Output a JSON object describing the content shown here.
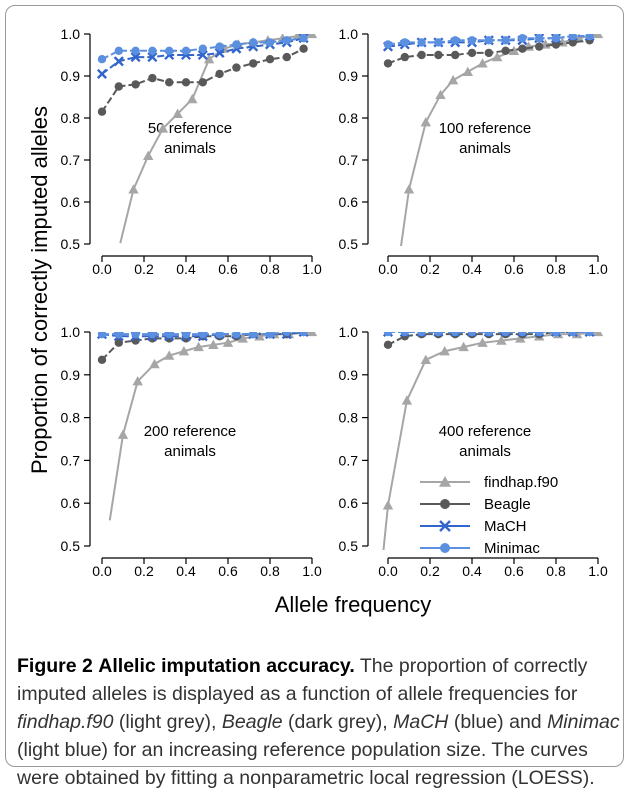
{
  "figure": {
    "label": "Figure 2",
    "title": "Allelic imputation accuracy.",
    "caption": [
      {
        "text": " The proportion of correctly imputed alleles is displayed as a function of allele frequencies for ",
        "italic": false
      },
      {
        "text": "findhap.f90",
        "italic": true
      },
      {
        "text": " (light grey), ",
        "italic": false
      },
      {
        "text": "Beagle",
        "italic": true
      },
      {
        "text": " (dark grey), ",
        "italic": false
      },
      {
        "text": "MaCH",
        "italic": true
      },
      {
        "text": " (blue) and ",
        "italic": false
      },
      {
        "text": "Minimac",
        "italic": true
      },
      {
        "text": " (light blue) for an increasing reference population size. The curves were obtained by fitting a nonparametric local regression (LOESS).",
        "italic": false
      }
    ]
  },
  "chart_data": {
    "type": "line",
    "xlabel": "Allele frequency",
    "ylabel": "Proportion of correctly imputed alleles",
    "xlim": [
      0,
      1
    ],
    "ylim": [
      0.5,
      1.0
    ],
    "xticks": [
      "0.0",
      "0.2",
      "0.4",
      "0.6",
      "0.8",
      "1.0"
    ],
    "yticks": [
      "0.5",
      "0.6",
      "0.7",
      "0.8",
      "0.9",
      "1.0"
    ],
    "legend_position": "inside bottom-right panel",
    "series_styles": [
      {
        "name": "findhap.f90",
        "color": "#a6a6a6",
        "marker": "triangle"
      },
      {
        "name": "Beagle",
        "color": "#595959",
        "marker": "circle"
      },
      {
        "name": "MaCH",
        "color": "#3366cc",
        "marker": "x"
      },
      {
        "name": "Minimac",
        "color": "#5b8fe0",
        "marker": "circle"
      }
    ],
    "panels": [
      {
        "annotation": [
          "50 reference",
          "animals"
        ],
        "series": [
          {
            "name": "findhap.f90",
            "x": [
              0.15,
              0.22,
              0.29,
              0.36,
              0.43,
              0.51,
              0.58,
              0.65,
              0.72,
              0.79,
              0.86,
              0.93,
              1.0
            ],
            "values": [
              0.63,
              0.71,
              0.775,
              0.81,
              0.845,
              0.94,
              0.965,
              0.975,
              0.98,
              0.985,
              0.99,
              0.995,
              1.0
            ]
          },
          {
            "name": "Beagle",
            "x": [
              0.0,
              0.08,
              0.16,
              0.24,
              0.32,
              0.4,
              0.48,
              0.56,
              0.64,
              0.72,
              0.8,
              0.88,
              0.96
            ],
            "values": [
              0.815,
              0.875,
              0.88,
              0.895,
              0.885,
              0.885,
              0.885,
              0.905,
              0.92,
              0.93,
              0.94,
              0.945,
              0.965
            ]
          },
          {
            "name": "MaCH",
            "x": [
              0.0,
              0.08,
              0.16,
              0.24,
              0.32,
              0.4,
              0.48,
              0.56,
              0.64,
              0.72,
              0.8,
              0.88,
              0.96
            ],
            "values": [
              0.905,
              0.935,
              0.945,
              0.945,
              0.95,
              0.95,
              0.95,
              0.955,
              0.965,
              0.97,
              0.975,
              0.98,
              0.99
            ]
          },
          {
            "name": "Minimac",
            "x": [
              0.0,
              0.08,
              0.16,
              0.24,
              0.32,
              0.4,
              0.48,
              0.56,
              0.64,
              0.72,
              0.8,
              0.88,
              0.96
            ],
            "values": [
              0.94,
              0.96,
              0.96,
              0.96,
              0.96,
              0.96,
              0.965,
              0.97,
              0.975,
              0.98,
              0.98,
              0.985,
              0.99
            ]
          }
        ]
      },
      {
        "annotation": [
          "100 reference",
          "animals"
        ],
        "series": [
          {
            "name": "findhap.f90",
            "x": [
              0.1,
              0.18,
              0.25,
              0.31,
              0.38,
              0.45,
              0.52,
              0.6,
              0.67,
              0.75,
              0.83,
              0.91,
              1.0
            ],
            "values": [
              0.63,
              0.79,
              0.855,
              0.89,
              0.91,
              0.93,
              0.945,
              0.96,
              0.97,
              0.975,
              0.98,
              0.99,
              1.0
            ]
          },
          {
            "name": "Beagle",
            "x": [
              0.0,
              0.08,
              0.16,
              0.24,
              0.32,
              0.4,
              0.48,
              0.56,
              0.64,
              0.72,
              0.8,
              0.88,
              0.96
            ],
            "values": [
              0.93,
              0.945,
              0.95,
              0.95,
              0.95,
              0.955,
              0.955,
              0.96,
              0.965,
              0.97,
              0.975,
              0.98,
              0.985
            ]
          },
          {
            "name": "MaCH",
            "x": [
              0.0,
              0.08,
              0.16,
              0.24,
              0.32,
              0.4,
              0.48,
              0.56,
              0.64,
              0.72,
              0.8,
              0.88,
              0.96
            ],
            "values": [
              0.97,
              0.975,
              0.98,
              0.98,
              0.98,
              0.98,
              0.985,
              0.985,
              0.985,
              0.99,
              0.99,
              0.995,
              0.995
            ]
          },
          {
            "name": "Minimac",
            "x": [
              0.0,
              0.08,
              0.16,
              0.24,
              0.32,
              0.4,
              0.48,
              0.56,
              0.64,
              0.72,
              0.8,
              0.88,
              0.96
            ],
            "values": [
              0.975,
              0.98,
              0.98,
              0.98,
              0.985,
              0.985,
              0.985,
              0.985,
              0.99,
              0.99,
              0.99,
              0.995,
              0.995
            ]
          }
        ]
      },
      {
        "annotation": [
          "200 reference",
          "animals"
        ],
        "series": [
          {
            "name": "findhap.f90",
            "x": [
              0.1,
              0.17,
              0.25,
              0.32,
              0.39,
              0.46,
              0.53,
              0.6,
              0.67,
              0.75,
              0.82,
              0.89,
              1.0
            ],
            "values": [
              0.76,
              0.885,
              0.925,
              0.945,
              0.955,
              0.965,
              0.97,
              0.975,
              0.985,
              0.99,
              0.995,
              0.995,
              1.0
            ]
          },
          {
            "name": "Beagle",
            "x": [
              0.0,
              0.08,
              0.16,
              0.24,
              0.32,
              0.4,
              0.48,
              0.56,
              0.64,
              0.72,
              0.8,
              0.88,
              0.96
            ],
            "values": [
              0.935,
              0.975,
              0.98,
              0.985,
              0.985,
              0.985,
              0.99,
              0.99,
              0.99,
              0.995,
              0.995,
              0.995,
              1.0
            ]
          },
          {
            "name": "MaCH",
            "x": [
              0.0,
              0.08,
              0.16,
              0.24,
              0.32,
              0.4,
              0.48,
              0.56,
              0.64,
              0.72,
              0.8,
              0.88,
              0.96
            ],
            "values": [
              0.995,
              0.99,
              0.99,
              0.99,
              0.99,
              0.99,
              0.99,
              0.995,
              0.995,
              0.995,
              0.995,
              0.995,
              1.0
            ]
          },
          {
            "name": "Minimac",
            "x": [
              0.0,
              0.08,
              0.16,
              0.24,
              0.32,
              0.4,
              0.48,
              0.56,
              0.64,
              0.72,
              0.8,
              0.88,
              0.96
            ],
            "values": [
              0.995,
              0.995,
              0.995,
              0.995,
              0.995,
              0.995,
              0.995,
              0.995,
              0.995,
              0.995,
              0.995,
              1.0,
              1.0
            ]
          }
        ]
      },
      {
        "annotation": [
          "400 reference",
          "animals"
        ],
        "series": [
          {
            "name": "findhap.f90",
            "x": [
              0.0,
              0.09,
              0.18,
              0.27,
              0.36,
              0.45,
              0.54,
              0.63,
              0.72,
              0.81,
              0.9,
              1.0
            ],
            "values": [
              0.595,
              0.84,
              0.935,
              0.955,
              0.965,
              0.975,
              0.98,
              0.985,
              0.99,
              0.995,
              0.995,
              1.0
            ]
          },
          {
            "name": "Beagle",
            "x": [
              0.0,
              0.08,
              0.16,
              0.24,
              0.32,
              0.4,
              0.48,
              0.56,
              0.64,
              0.72,
              0.8,
              0.88,
              0.96
            ],
            "values": [
              0.97,
              0.99,
              0.995,
              0.995,
              0.995,
              0.995,
              0.995,
              0.995,
              0.995,
              0.995,
              1.0,
              1.0,
              1.0
            ]
          },
          {
            "name": "MaCH",
            "x": [
              0.0,
              0.08,
              0.16,
              0.24,
              0.32,
              0.4,
              0.48,
              0.56,
              0.64,
              0.72,
              0.8,
              0.88,
              0.96
            ],
            "values": [
              1.0,
              1.0,
              1.0,
              1.0,
              1.0,
              1.0,
              1.0,
              1.0,
              1.0,
              1.0,
              1.0,
              1.0,
              1.0
            ]
          },
          {
            "name": "Minimac",
            "x": [
              0.0,
              0.08,
              0.16,
              0.24,
              0.32,
              0.4,
              0.48,
              0.56,
              0.64,
              0.72,
              0.8,
              0.88,
              0.96
            ],
            "values": [
              1.0,
              1.0,
              1.0,
              1.0,
              1.0,
              1.0,
              1.0,
              1.0,
              1.0,
              1.0,
              1.0,
              1.0,
              1.0
            ]
          }
        ]
      }
    ]
  }
}
